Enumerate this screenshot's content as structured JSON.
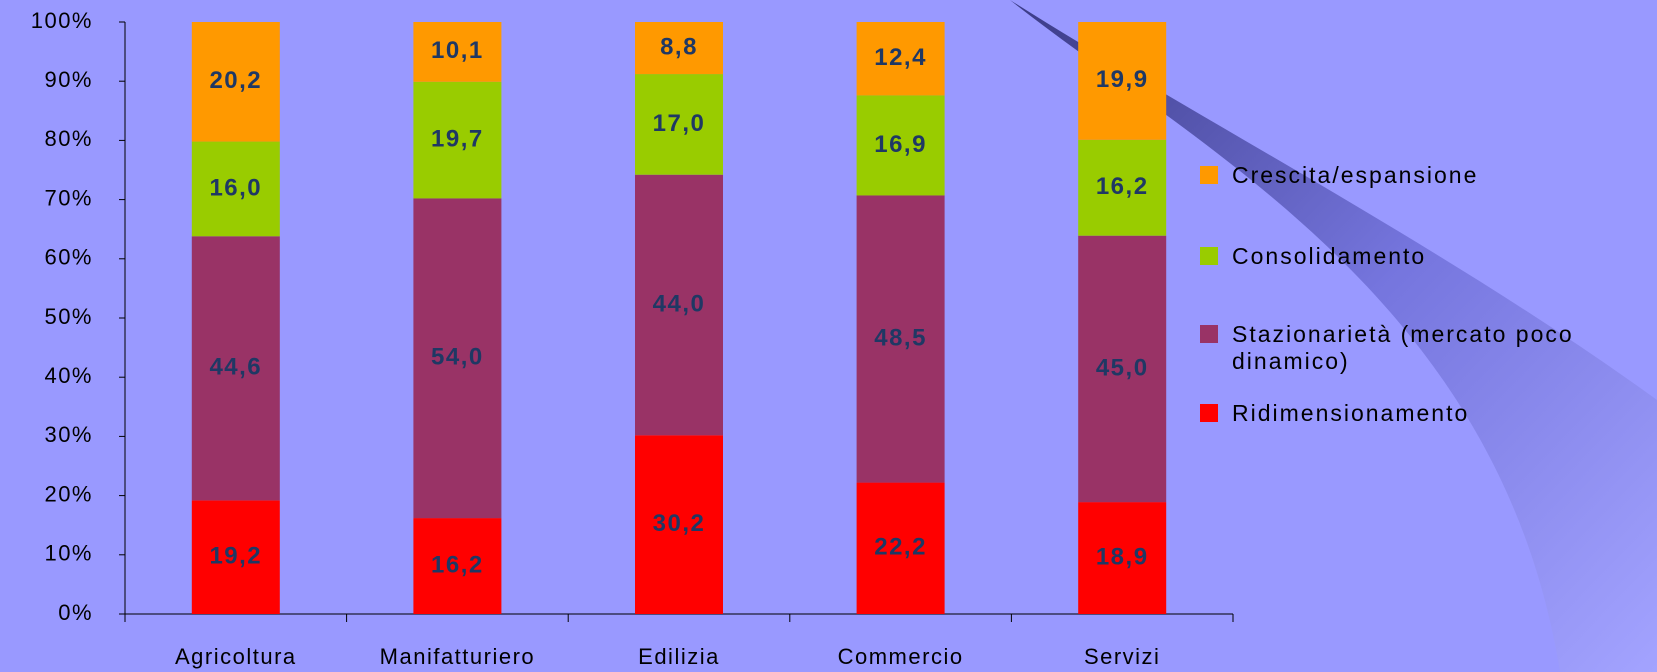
{
  "chart_data": {
    "type": "stacked_bar",
    "categories": [
      "Agricoltura",
      "Manifatturiero",
      "Edilizia",
      "Commercio",
      "Servizi"
    ],
    "series": [
      {
        "name": "Ridimensionamento",
        "color": "#ff0000",
        "values": [
          19.2,
          16.2,
          30.2,
          22.2,
          18.9
        ],
        "value_labels": [
          "19,2",
          "16,2",
          "30,2",
          "22,2",
          "18,9"
        ]
      },
      {
        "name": "Stazionarietà (mercato poco dinamico)",
        "color": "#993366",
        "values": [
          44.6,
          54.0,
          44.0,
          48.5,
          45.0
        ],
        "value_labels": [
          "44,6",
          "54,0",
          "44,0",
          "48,5",
          "45,0"
        ]
      },
      {
        "name": "Consolidamento",
        "color": "#99cc00",
        "values": [
          16.0,
          19.7,
          17.0,
          16.9,
          16.2
        ],
        "value_labels": [
          "16,0",
          "19,7",
          "17,0",
          "16,9",
          "16,2"
        ]
      },
      {
        "name": "Crescita/espansione",
        "color": "#ff9900",
        "values": [
          20.2,
          10.1,
          8.8,
          12.4,
          19.9
        ],
        "value_labels": [
          "20,2",
          "10,1",
          "8,8",
          "12,4",
          "19,9"
        ]
      }
    ],
    "ylim": [
      0,
      100
    ],
    "yticks": [
      {
        "value": 0,
        "label": "0%"
      },
      {
        "value": 10,
        "label": "10%"
      },
      {
        "value": 20,
        "label": "20%"
      },
      {
        "value": 30,
        "label": "30%"
      },
      {
        "value": 40,
        "label": "40%"
      },
      {
        "value": 50,
        "label": "50%"
      },
      {
        "value": 60,
        "label": "60%"
      },
      {
        "value": 70,
        "label": "70%"
      },
      {
        "value": 80,
        "label": "80%"
      },
      {
        "value": 90,
        "label": "90%"
      },
      {
        "value": 100,
        "label": "100%"
      }
    ],
    "legend": "right",
    "grid": false
  }
}
